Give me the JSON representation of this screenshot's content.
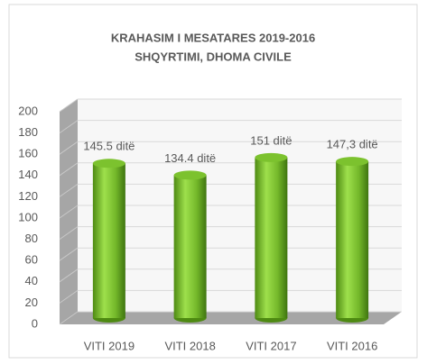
{
  "chart_data": {
    "type": "bar",
    "title": "KRAHASIM I MESATARES 2019-2016",
    "subtitle": "SHQYRTIMI,  DHOMA CIVILE",
    "categories": [
      "VITI 2019",
      "VITI 2018",
      "VITI 2017",
      "VITI 2016"
    ],
    "values": [
      145.5,
      134.4,
      151,
      147.3
    ],
    "value_labels": [
      "145.5 ditë",
      "134.4 ditë",
      "151 ditë",
      "147,3 ditë"
    ],
    "color": "#7cc22e",
    "ylim": [
      0,
      200
    ],
    "yticks": [
      0,
      20,
      40,
      60,
      80,
      100,
      120,
      140,
      160,
      180,
      200
    ],
    "grid": true
  }
}
